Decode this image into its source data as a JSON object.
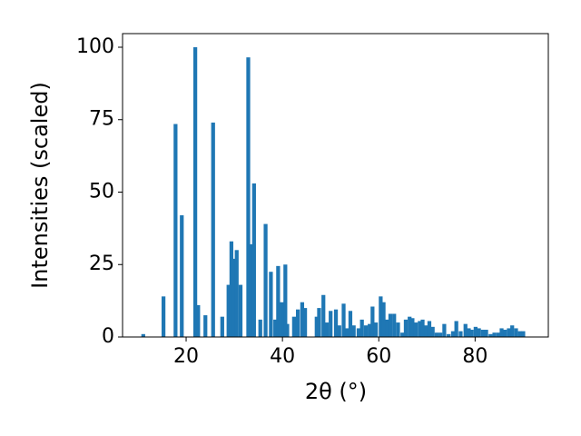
{
  "chart_data": {
    "type": "bar",
    "xlabel": "2θ (°)",
    "ylabel": "Intensities (scaled)",
    "color": "#1f77b4",
    "x": [
      11.1,
      15.3,
      17.8,
      19.1,
      21.9,
      22.5,
      24.0,
      25.6,
      27.5,
      28.8,
      29.4,
      30.0,
      30.5,
      31.3,
      32.9,
      33.5,
      34.1,
      35.4,
      36.5,
      37.6,
      38.5,
      39.1,
      39.9,
      40.6,
      41.0,
      42.4,
      43.2,
      44.1,
      44.7,
      47.1,
      47.6,
      48.5,
      49.2,
      50.0,
      51.1,
      51.8,
      52.7,
      53.4,
      54.1,
      54.8,
      55.8,
      56.5,
      57.3,
      58.1,
      58.7,
      59.4,
      60.4,
      61.0,
      61.7,
      62.4,
      63.2,
      64.0,
      64.9,
      65.6,
      66.4,
      67.0,
      67.7,
      68.5,
      69.1,
      69.8,
      70.5,
      71.2,
      72.0,
      72.8,
      73.6,
      74.5,
      75.4,
      76.1,
      77.0,
      78.0,
      78.7,
      79.3,
      80.1,
      80.8,
      81.6,
      82.3,
      83.2,
      84.0,
      84.8,
      85.5,
      86.2,
      87.0,
      87.7,
      88.5,
      89.3,
      90.0
    ],
    "values": [
      1,
      14,
      73.5,
      42,
      100,
      11,
      7.5,
      74,
      7,
      18,
      33,
      27,
      30,
      18,
      96.5,
      32,
      53,
      6,
      39,
      22.5,
      6,
      24.5,
      12,
      25,
      4.5,
      7,
      9.5,
      12,
      10,
      7,
      10,
      14.5,
      5,
      9,
      9.5,
      4,
      11.5,
      3,
      9,
      4,
      3,
      6,
      4,
      4.5,
      10.5,
      5,
      14,
      12,
      6,
      8,
      8,
      5,
      1.5,
      6,
      7,
      6.5,
      5,
      5.5,
      6,
      4,
      5.5,
      3.5,
      1.5,
      1.5,
      4.5,
      1,
      2,
      5.5,
      2,
      4.5,
      3,
      2.5,
      3.5,
      3,
      2.5,
      2.5,
      1,
      1.5,
      1.5,
      3,
      2.5,
      3,
      4,
      3,
      2,
      2
    ],
    "xlim": [
      6.8,
      95.2
    ],
    "ylim": [
      0,
      104.7
    ],
    "xticks": [
      20,
      40,
      60,
      80
    ],
    "yticks": [
      0,
      25,
      50,
      75,
      100
    ]
  }
}
